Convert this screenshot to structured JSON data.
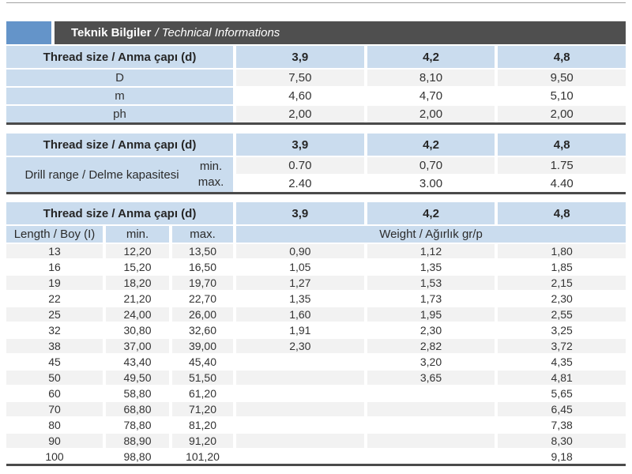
{
  "header": {
    "title_bold": "Teknik Bilgiler",
    "title_italic": "/ Technical Informations"
  },
  "shared": {
    "thread_header": "Thread size / Anma çapı (d)",
    "sizes": [
      "3,9",
      "4,2",
      "4,8"
    ]
  },
  "dimensions_table": {
    "rows": [
      {
        "label": "D",
        "values": [
          "7,50",
          "8,10",
          "9,50"
        ]
      },
      {
        "label": "m",
        "values": [
          "4,60",
          "4,70",
          "5,10"
        ]
      },
      {
        "label": "ph",
        "values": [
          "2,00",
          "2,00",
          "2,00"
        ]
      }
    ]
  },
  "drill_table": {
    "label": "Drill range / Delme kapasitesi",
    "min_label": "min.",
    "max_label": "max.",
    "min_values": [
      "0.70",
      "0,70",
      "1.75"
    ],
    "max_values": [
      "2.40",
      "3.00",
      "4.40"
    ]
  },
  "weight_table": {
    "length_label": "Length / Boy (I)",
    "min_label": "min.",
    "max_label": "max.",
    "weight_label": "Weight / Ağırlık gr/p",
    "rows": [
      {
        "length": "13",
        "min": "12,20",
        "max": "13,50",
        "w": [
          "0,90",
          "1,12",
          "1,80"
        ]
      },
      {
        "length": "16",
        "min": "15,20",
        "max": "16,50",
        "w": [
          "1,05",
          "1,35",
          "1,85"
        ]
      },
      {
        "length": "19",
        "min": "18,20",
        "max": "19,70",
        "w": [
          "1,27",
          "1,53",
          "2,15"
        ]
      },
      {
        "length": "22",
        "min": "21,20",
        "max": "22,70",
        "w": [
          "1,35",
          "1,73",
          "2,30"
        ]
      },
      {
        "length": "25",
        "min": "24,00",
        "max": "26,00",
        "w": [
          "1,60",
          "1,95",
          "2,55"
        ]
      },
      {
        "length": "32",
        "min": "30,80",
        "max": "32,60",
        "w": [
          "1,91",
          "2,30",
          "3,25"
        ]
      },
      {
        "length": "38",
        "min": "37,00",
        "max": "39,00",
        "w": [
          "2,30",
          "2,82",
          "3,72"
        ]
      },
      {
        "length": "45",
        "min": "43,40",
        "max": "45,40",
        "w": [
          "",
          "3,20",
          "4,35"
        ]
      },
      {
        "length": "50",
        "min": "49,50",
        "max": "51,50",
        "w": [
          "",
          "3,65",
          "4,81"
        ]
      },
      {
        "length": "60",
        "min": "58,80",
        "max": "61,20",
        "w": [
          "",
          "",
          "5,65"
        ]
      },
      {
        "length": "70",
        "min": "68,80",
        "max": "71,20",
        "w": [
          "",
          "",
          "6,45"
        ]
      },
      {
        "length": "80",
        "min": "78,80",
        "max": "81,20",
        "w": [
          "",
          "",
          "7,38"
        ]
      },
      {
        "length": "90",
        "min": "88,90",
        "max": "91,20",
        "w": [
          "",
          "",
          "8,30"
        ]
      },
      {
        "length": "100",
        "min": "98,80",
        "max": "101,20",
        "w": [
          "",
          "",
          "9,18"
        ]
      }
    ]
  },
  "colors": {
    "accent_blue": "#6494c9",
    "title_band_gray": "#4f4f4f",
    "header_cell_blue": "#cadcee",
    "alt_row_gray": "#f2f2f2",
    "divider_dark": "#4a4a4a"
  }
}
